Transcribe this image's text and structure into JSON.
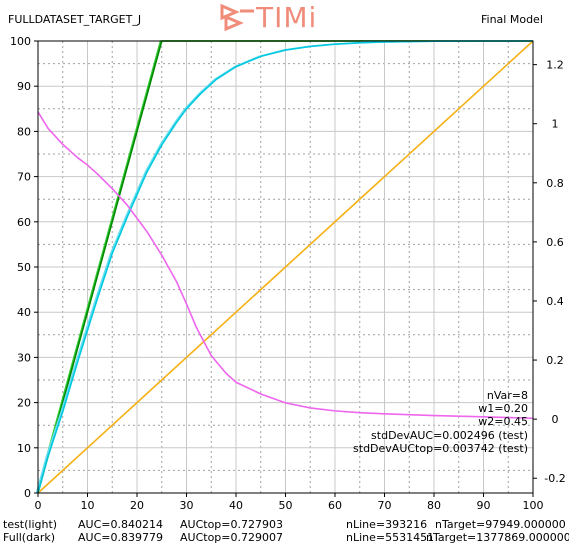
{
  "header": {
    "left_title": "FULLDATASET_TARGET_J",
    "logo_text": "TIMi",
    "right_title": "Final Model"
  },
  "stats": [
    "nVar=8",
    "w1=0.20",
    "w2=0.45",
    "stdDevAUC=0.002496 (test)",
    "stdDevAUCtop=0.003742 (test)"
  ],
  "footer": {
    "row1": {
      "label": "test(light)",
      "auc": "AUC=0.840214",
      "auctop": "AUCtop=0.727903",
      "nline": "nLine=393216",
      "ntarget": "nTarget=97949.000000"
    },
    "row2": {
      "label": "Full(dark)",
      "auc": "AUC=0.839779",
      "auctop": "AUCtop=0.729007",
      "nline": "nLine=5531451",
      "ntarget": "nTarget=1377869.000000"
    }
  },
  "colors": {
    "perfect_light": "#33cc33",
    "perfect_dark": "#008800",
    "gain_light": "#66e0ee",
    "gain_dark": "#00c8e0",
    "random": "#f5b014",
    "lift": "#ee66ee",
    "grid_major": "#c8c8c8",
    "grid_minor": "#a0a0a0",
    "logo": "#f08c7a"
  },
  "chart_data": {
    "type": "line",
    "title": "",
    "xlabel": "",
    "ylabel": "",
    "xlim": [
      0,
      100
    ],
    "ylim": [
      0,
      100
    ],
    "y2lim": [
      -0.25,
      1.28
    ],
    "x_ticks": [
      0,
      10,
      20,
      30,
      40,
      50,
      60,
      70,
      80,
      90,
      100
    ],
    "y_ticks": [
      0,
      10,
      20,
      30,
      40,
      50,
      60,
      70,
      80,
      90,
      100
    ],
    "y2_ticks": [
      -0.2,
      0,
      0.2,
      0.4,
      0.6,
      0.8,
      1,
      1.2
    ],
    "grid": true,
    "series": [
      {
        "axis": "left",
        "color": "#33cc33",
        "x": [
          0,
          25,
          100
        ],
        "y": [
          0,
          100,
          100
        ]
      },
      {
        "axis": "left",
        "color": "#008800",
        "x": [
          0,
          25,
          100
        ],
        "y": [
          0,
          100,
          100
        ]
      },
      {
        "axis": "left",
        "color": "#f5b014",
        "x": [
          0,
          100
        ],
        "y": [
          0,
          100
        ]
      },
      {
        "axis": "left",
        "color": "#66e0ee",
        "x": [
          0,
          2,
          5,
          8,
          10,
          12,
          15,
          18,
          20,
          22,
          25,
          28,
          30,
          33,
          36,
          40,
          45,
          50,
          55,
          60,
          65,
          70,
          80,
          90,
          100
        ],
        "y": [
          0,
          8,
          18,
          29,
          36,
          43,
          53,
          61,
          66,
          71,
          77,
          82,
          85,
          88.5,
          91.5,
          94.3,
          96.6,
          98,
          98.8,
          99.3,
          99.6,
          99.8,
          99.95,
          100,
          100
        ]
      },
      {
        "axis": "left",
        "color": "#00c8e0",
        "x": [
          0,
          2,
          5,
          8,
          10,
          12,
          15,
          18,
          20,
          22,
          25,
          28,
          30,
          33,
          36,
          40,
          45,
          50,
          55,
          60,
          65,
          70,
          80,
          90,
          100
        ],
        "y": [
          0,
          8,
          18,
          29,
          36,
          43,
          53,
          61,
          66,
          71,
          77,
          82,
          85,
          88.5,
          91.5,
          94.3,
          96.6,
          98,
          98.8,
          99.3,
          99.6,
          99.8,
          99.95,
          100,
          100
        ]
      },
      {
        "axis": "right",
        "color": "#ee66ee",
        "x": [
          0,
          2,
          5,
          8,
          10,
          12,
          15,
          18,
          20,
          22,
          25,
          28,
          30,
          32,
          35,
          38,
          40,
          45,
          50,
          55,
          60,
          65,
          70,
          80,
          90,
          100
        ],
        "y": [
          1.04,
          0.985,
          0.93,
          0.885,
          0.86,
          0.83,
          0.78,
          0.725,
          0.68,
          0.635,
          0.555,
          0.465,
          0.39,
          0.31,
          0.215,
          0.155,
          0.125,
          0.085,
          0.055,
          0.038,
          0.028,
          0.022,
          0.018,
          0.012,
          0.008,
          0.003
        ]
      }
    ]
  }
}
